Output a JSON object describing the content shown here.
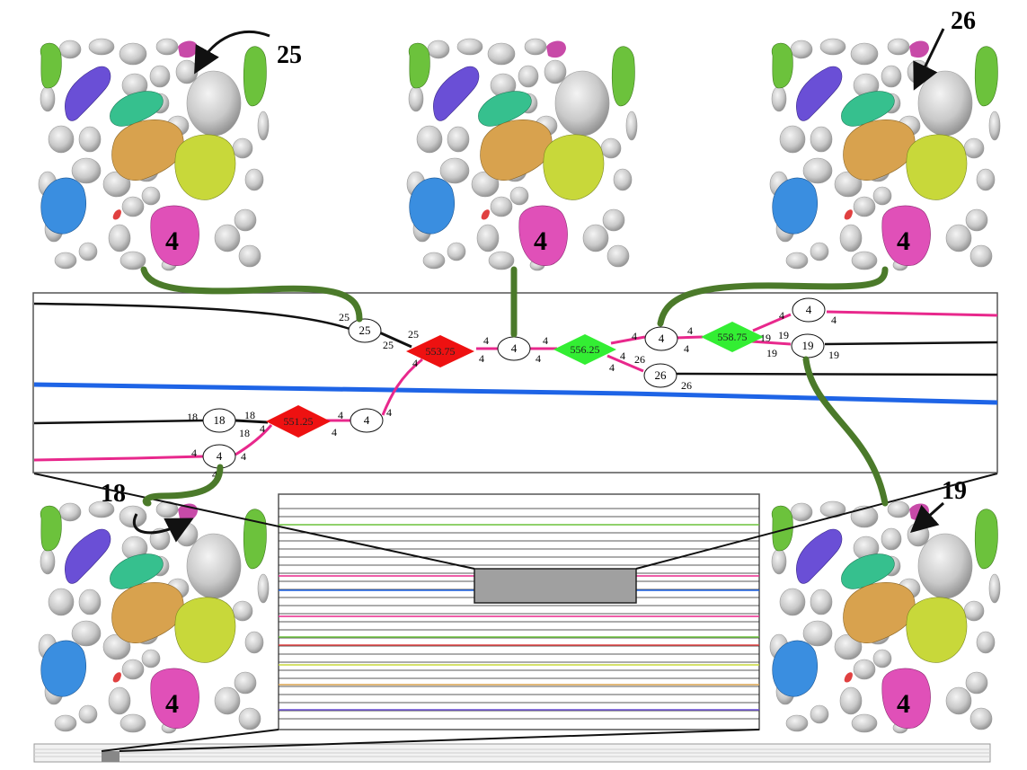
{
  "panels": {
    "top_left": {
      "cell_label": "4",
      "callout": "25"
    },
    "top_center": {
      "cell_label": "4"
    },
    "top_right": {
      "cell_label": "4",
      "callout": "26"
    },
    "bottom_left": {
      "cell_label": "4",
      "callout": "18"
    },
    "bottom_right": {
      "cell_label": "4",
      "callout": "19"
    }
  },
  "events": {
    "e1": "553.75",
    "e2": "556.25",
    "e3": "558.75",
    "e4": "551.25"
  },
  "nodes": {
    "n25": "25",
    "n4a": "4",
    "n4b": "4",
    "n26": "26",
    "n4c": "4",
    "n19": "19",
    "n18": "18",
    "n4d": "4",
    "n4e": "4"
  },
  "edge_labels": {
    "l_25a": "25",
    "l_25b": "25",
    "l_25c": "25",
    "l_4a": "4",
    "l_4b": "4",
    "l_4c": "4",
    "l_4d": "4",
    "l_4e": "4",
    "l_4f": "4",
    "l_4g": "4",
    "l_4h": "4",
    "l_4i": "4",
    "l_26a": "26",
    "l_26b": "26",
    "l_4j": "4",
    "l_4k": "4",
    "l_4l": "4",
    "l_4m": "4",
    "l_19a": "19",
    "l_19b": "19",
    "l_19c": "19",
    "l_19d": "19",
    "l_18a": "18",
    "l_18b": "18",
    "l_18c": "18",
    "l_4n": "4",
    "l_4o": "4",
    "l_4p": "4",
    "l_4q": "4",
    "l_4r": "4",
    "l_4s": "4",
    "l_4t": "4"
  },
  "colors": {
    "magenta": "#e8288c",
    "blue": "#1e64e6",
    "black": "#111111",
    "green_event": "#33ee33",
    "red_event": "#ee1111",
    "connector": "#4b7a2a",
    "cell_green": "#6cc23c",
    "cell_purple": "#6a4fd6",
    "cell_teal": "#36c08e",
    "cell_orange": "#d8a24e",
    "cell_yellow": "#c8d83a",
    "cell_blue": "#3a8ee0",
    "cell_pink": "#e050b8",
    "cell_red": "#e04040"
  }
}
